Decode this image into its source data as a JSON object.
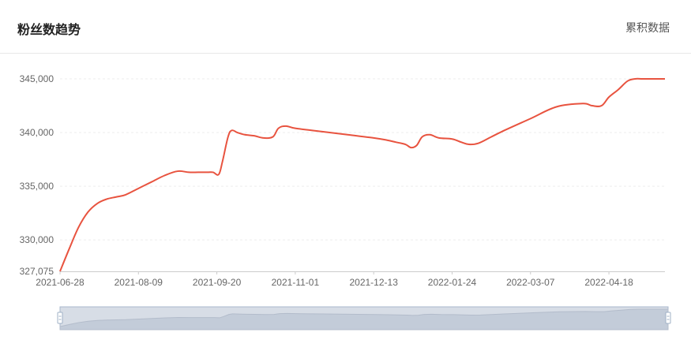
{
  "header": {
    "title": "粉丝数趋势",
    "toggle_label": "累积数据"
  },
  "colors": {
    "line": "#e8533f",
    "grid": "#eeeeee",
    "axis": "#cccccc",
    "slider_fill": "#d7dde6",
    "slider_border": "#aab8cc"
  },
  "chart_data": {
    "type": "line",
    "title": "",
    "xlabel": "",
    "ylabel": "",
    "ylim": [
      327075,
      345000
    ],
    "y_ticks": [
      {
        "value": 345000,
        "label": "345,000"
      },
      {
        "value": 340000,
        "label": "340,000"
      },
      {
        "value": 335000,
        "label": "335,000"
      },
      {
        "value": 330000,
        "label": "330,000"
      },
      {
        "value": 327075,
        "label": "327,075"
      }
    ],
    "x_ticks": [
      "2021-06-28",
      "2021-08-09",
      "2021-09-20",
      "2021-11-01",
      "2021-12-13",
      "2022-01-24",
      "2022-03-07",
      "2022-04-18"
    ],
    "x_range": [
      "2021-06-28",
      "2022-05-18"
    ],
    "grid": true,
    "series": [
      {
        "x": [
          "2021-06-28",
          "2021-07-03",
          "2021-07-08",
          "2021-07-13",
          "2021-07-18",
          "2021-07-23",
          "2021-07-28",
          "2021-08-02",
          "2021-08-09",
          "2021-08-16",
          "2021-08-23",
          "2021-08-30",
          "2021-09-05",
          "2021-09-10",
          "2021-09-15",
          "2021-09-18",
          "2021-09-21",
          "2021-09-23",
          "2021-09-26",
          "2021-09-28",
          "2021-10-01",
          "2021-10-05",
          "2021-10-10",
          "2021-10-15",
          "2021-10-20",
          "2021-10-23",
          "2021-10-27",
          "2021-11-01",
          "2021-11-15",
          "2021-11-29",
          "2021-12-13",
          "2021-12-20",
          "2021-12-25",
          "2021-12-30",
          "2022-01-02",
          "2022-01-05",
          "2022-01-08",
          "2022-01-12",
          "2022-01-17",
          "2022-01-24",
          "2022-01-29",
          "2022-02-02",
          "2022-02-07",
          "2022-02-14",
          "2022-02-21",
          "2022-03-07",
          "2022-03-21",
          "2022-04-04",
          "2022-04-09",
          "2022-04-14",
          "2022-04-18",
          "2022-04-23",
          "2022-04-28",
          "2022-05-02",
          "2022-05-06",
          "2022-05-12",
          "2022-05-18"
        ],
        "values": [
          327075,
          329200,
          331200,
          332600,
          333400,
          333800,
          334000,
          334200,
          334800,
          335400,
          336000,
          336400,
          336300,
          336300,
          336300,
          336300,
          336100,
          337300,
          339600,
          340200,
          340000,
          339800,
          339700,
          339500,
          339600,
          340400,
          340600,
          340400,
          340100,
          339800,
          339500,
          339300,
          339100,
          338900,
          338600,
          338800,
          339600,
          339800,
          339500,
          339400,
          339100,
          338900,
          339000,
          339600,
          340200,
          341300,
          342400,
          342700,
          342500,
          342500,
          343300,
          344000,
          344800,
          345000,
          345000,
          345000,
          345000
        ]
      }
    ]
  }
}
